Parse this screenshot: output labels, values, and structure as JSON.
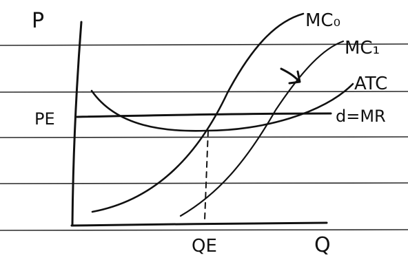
{
  "diagram": {
    "labels": {
      "y_axis": "P",
      "x_axis": "Q",
      "price_level": "PE",
      "quantity_level": "QE"
    },
    "curves": {
      "mc0": "MC₀",
      "mc1": "MC₁",
      "atc": "ATC",
      "demand": "d=MR"
    }
  },
  "colors": {
    "ink": "#111111",
    "ruled_line": "#2b2b2b",
    "paper": "#ffffff"
  }
}
